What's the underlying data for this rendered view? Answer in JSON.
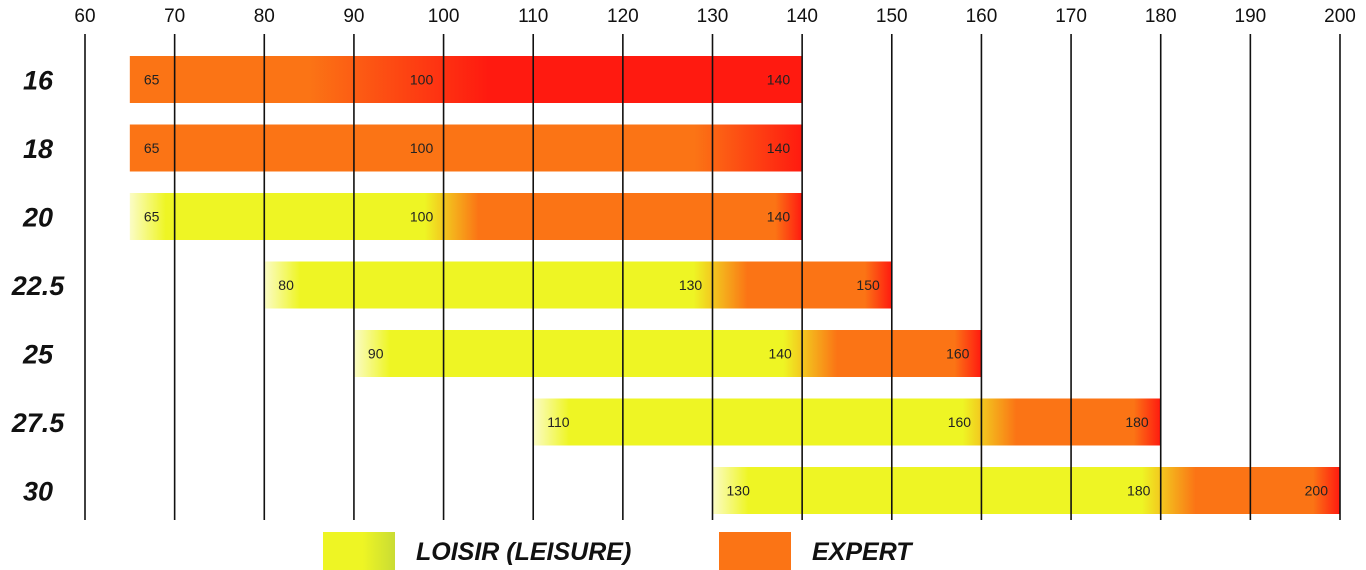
{
  "chart_data": {
    "type": "bar",
    "orientation": "horizontal",
    "x_ticks": [
      60,
      70,
      80,
      90,
      100,
      110,
      120,
      130,
      140,
      150,
      160,
      170,
      180,
      190,
      200
    ],
    "xlim": [
      60,
      200
    ],
    "grid": true,
    "categories": [
      "16",
      "18",
      "20",
      "22.5",
      "25",
      "27.5",
      "30"
    ],
    "bars": [
      {
        "category": "16",
        "start": 65,
        "mid": 100,
        "end": 140,
        "leisure_end": 65,
        "labels": [
          "65",
          "100",
          "140"
        ]
      },
      {
        "category": "18",
        "start": 65,
        "mid": 100,
        "end": 140,
        "leisure_end": 65,
        "labels": [
          "65",
          "100",
          "140"
        ]
      },
      {
        "category": "20",
        "start": 65,
        "mid": 100,
        "end": 140,
        "leisure_end": 100,
        "labels": [
          "65",
          "100",
          "140"
        ]
      },
      {
        "category": "22.5",
        "start": 80,
        "mid": 130,
        "end": 150,
        "leisure_end": 130,
        "labels": [
          "80",
          "130",
          "150"
        ]
      },
      {
        "category": "25",
        "start": 90,
        "mid": 140,
        "end": 160,
        "leisure_end": 140,
        "labels": [
          "90",
          "140",
          "160"
        ]
      },
      {
        "category": "27.5",
        "start": 110,
        "mid": 160,
        "end": 180,
        "leisure_end": 160,
        "labels": [
          "110",
          "160",
          "180"
        ]
      },
      {
        "category": "30",
        "start": 130,
        "mid": 180,
        "end": 200,
        "leisure_end": 180,
        "labels": [
          "130",
          "180",
          "200"
        ]
      }
    ],
    "legend": [
      {
        "name": "LOISIR (LEISURE)",
        "color": "#eef524"
      },
      {
        "name": "EXPERT",
        "color": "#fb7415"
      }
    ],
    "legend_position": "bottom",
    "colors": {
      "leisure": "#eef524",
      "expert": "#fb7415",
      "extreme": "#ff1a10",
      "pale": "#fbfcc6"
    }
  }
}
